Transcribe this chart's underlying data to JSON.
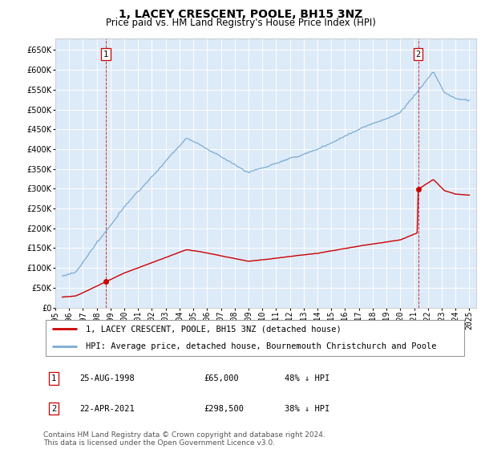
{
  "title": "1, LACEY CRESCENT, POOLE, BH15 3NZ",
  "subtitle": "Price paid vs. HM Land Registry's House Price Index (HPI)",
  "ylim": [
    0,
    680000
  ],
  "yticks": [
    0,
    50000,
    100000,
    150000,
    200000,
    250000,
    300000,
    350000,
    400000,
    450000,
    500000,
    550000,
    600000,
    650000
  ],
  "xlim_start": 1995.4,
  "xlim_end": 2025.5,
  "xtick_years": [
    1995,
    1996,
    1997,
    1998,
    1999,
    2000,
    2001,
    2002,
    2003,
    2004,
    2005,
    2006,
    2007,
    2008,
    2009,
    2010,
    2011,
    2012,
    2013,
    2014,
    2015,
    2016,
    2017,
    2018,
    2019,
    2020,
    2021,
    2022,
    2023,
    2024,
    2025
  ],
  "background_color": "#ddeaf8",
  "grid_color": "#ffffff",
  "hpi_color": "#7aadd4",
  "price_color": "#cc0000",
  "sale1_year": 1998.65,
  "sale1_price": 65000,
  "sale2_year": 2021.3,
  "sale2_price": 298500,
  "legend_label_price": "1, LACEY CRESCENT, POOLE, BH15 3NZ (detached house)",
  "legend_label_hpi": "HPI: Average price, detached house, Bournemouth Christchurch and Poole",
  "table_row1": [
    "1",
    "25-AUG-1998",
    "£65,000",
    "48% ↓ HPI"
  ],
  "table_row2": [
    "2",
    "22-APR-2021",
    "£298,500",
    "38% ↓ HPI"
  ],
  "footnote": "Contains HM Land Registry data © Crown copyright and database right 2024.\nThis data is licensed under the Open Government Licence v3.0.",
  "title_fontsize": 10,
  "subtitle_fontsize": 8.5,
  "tick_fontsize": 7,
  "legend_fontsize": 7.5,
  "footnote_fontsize": 6.5
}
